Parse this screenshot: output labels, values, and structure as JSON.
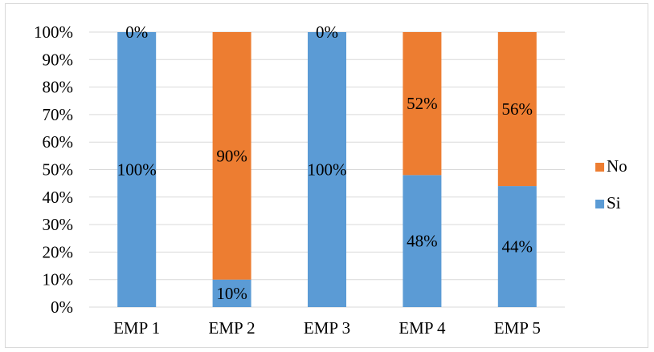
{
  "chart_data": {
    "type": "bar",
    "stacked": true,
    "percent": true,
    "title": "",
    "xlabel": "",
    "ylabel": "",
    "categories": [
      "EMP 1",
      "EMP 2",
      "EMP 3",
      "EMP 4",
      "EMP 5"
    ],
    "series": [
      {
        "name": "Si",
        "values": [
          100,
          10,
          100,
          48,
          44
        ],
        "labels": [
          "100%",
          "10%",
          "100%",
          "48%",
          "44%"
        ],
        "color": "#5b9bd5"
      },
      {
        "name": "No",
        "values": [
          0,
          90,
          0,
          52,
          56
        ],
        "labels": [
          "0%",
          "90%",
          "0%",
          "52%",
          "56%"
        ],
        "color": "#ed7d31"
      }
    ],
    "ylim": [
      0,
      100
    ],
    "yticks": [
      0,
      10,
      20,
      30,
      40,
      50,
      60,
      70,
      80,
      90,
      100
    ],
    "ytick_labels": [
      "0%",
      "10%",
      "20%",
      "30%",
      "40%",
      "50%",
      "60%",
      "70%",
      "80%",
      "90%",
      "100%"
    ],
    "grid": true,
    "gridline_color": "#d9d9d9",
    "legend": {
      "position": "right",
      "entries": [
        {
          "name": "No",
          "color": "#ed7d31"
        },
        {
          "name": "Si",
          "color": "#5b9bd5"
        }
      ]
    }
  }
}
